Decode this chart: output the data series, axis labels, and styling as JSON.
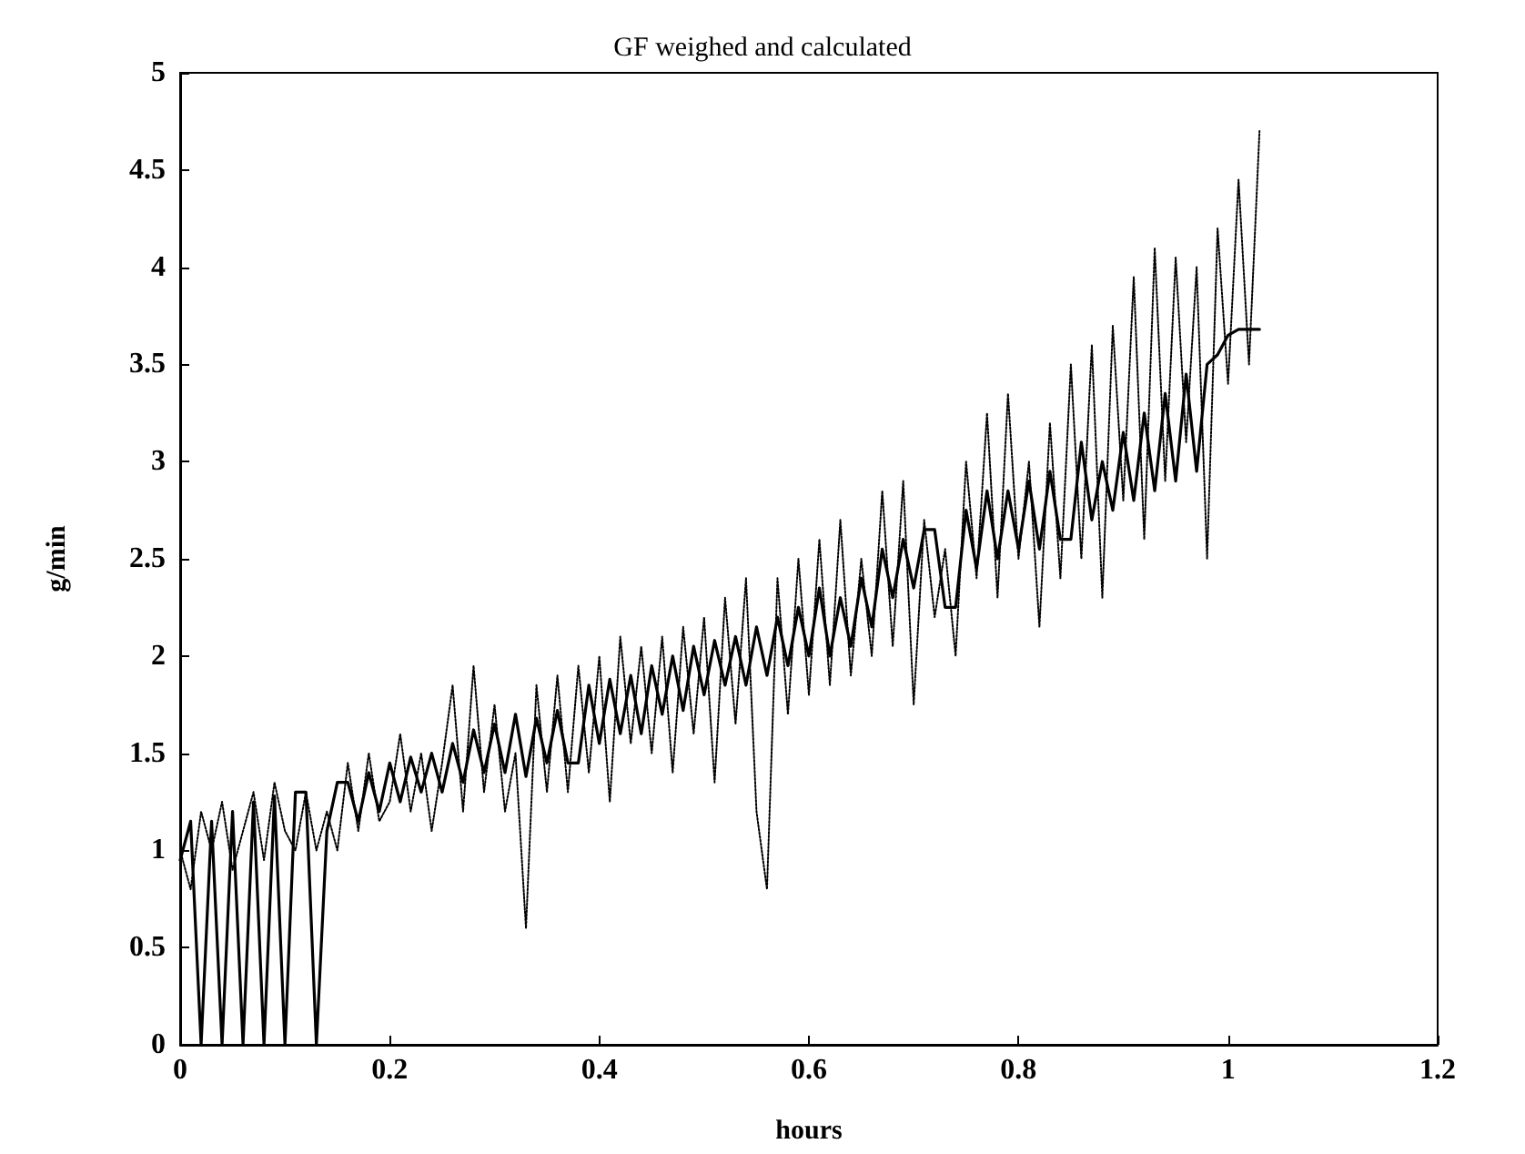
{
  "chart_data": {
    "type": "line",
    "title": "GF weighed and calculated",
    "xlabel": "hours",
    "ylabel": "g/min",
    "x": [
      0,
      0.01,
      0.02,
      0.03,
      0.04,
      0.05,
      0.06,
      0.07,
      0.08,
      0.09,
      0.1,
      0.11,
      0.12,
      0.13,
      0.14,
      0.15,
      0.16,
      0.17,
      0.18,
      0.19,
      0.2,
      0.21,
      0.22,
      0.23,
      0.24,
      0.25,
      0.26,
      0.27,
      0.28,
      0.29,
      0.3,
      0.31,
      0.32,
      0.33,
      0.34,
      0.35,
      0.36,
      0.37,
      0.38,
      0.39,
      0.4,
      0.41,
      0.42,
      0.43,
      0.44,
      0.45,
      0.46,
      0.47,
      0.48,
      0.49,
      0.5,
      0.51,
      0.52,
      0.53,
      0.54,
      0.55,
      0.56,
      0.57,
      0.58,
      0.59,
      0.6,
      0.61,
      0.62,
      0.63,
      0.64,
      0.65,
      0.66,
      0.67,
      0.68,
      0.69,
      0.7,
      0.71,
      0.72,
      0.73,
      0.74,
      0.75,
      0.76,
      0.77,
      0.78,
      0.79,
      0.8,
      0.81,
      0.82,
      0.83,
      0.84,
      0.85,
      0.86,
      0.87,
      0.88,
      0.89,
      0.9,
      0.91,
      0.92,
      0.93,
      0.94,
      0.95,
      0.96,
      0.97,
      0.98,
      0.99,
      1,
      1.01,
      1.02,
      1.03
    ],
    "series": [
      {
        "color": "#000000",
        "line_style": "dotted",
        "values": [
          1.0,
          0.8,
          1.2,
          1.0,
          1.25,
          0.9,
          1.1,
          1.3,
          0.95,
          1.35,
          1.1,
          1.0,
          1.3,
          1.0,
          1.2,
          1.0,
          1.45,
          1.1,
          1.5,
          1.15,
          1.25,
          1.6,
          1.2,
          1.5,
          1.1,
          1.45,
          1.85,
          1.2,
          1.95,
          1.3,
          1.75,
          1.2,
          1.5,
          0.6,
          1.85,
          1.3,
          1.9,
          1.3,
          1.95,
          1.4,
          2.0,
          1.25,
          2.1,
          1.55,
          2.05,
          1.5,
          2.1,
          1.4,
          2.15,
          1.6,
          2.2,
          1.35,
          2.3,
          1.65,
          2.4,
          1.2,
          0.8,
          2.4,
          1.7,
          2.5,
          1.8,
          2.6,
          1.85,
          2.7,
          1.9,
          2.5,
          2.0,
          2.85,
          2.05,
          2.9,
          1.75,
          2.7,
          2.2,
          2.55,
          2.0,
          3.0,
          2.4,
          3.25,
          2.3,
          3.35,
          2.5,
          3.0,
          2.15,
          3.2,
          2.4,
          3.5,
          2.5,
          3.6,
          2.3,
          3.7,
          2.8,
          3.95,
          2.6,
          4.1,
          2.9,
          4.05,
          3.1,
          4.0,
          2.5,
          4.2,
          3.4,
          4.45,
          3.5,
          4.7
        ]
      },
      {
        "color": "#000000",
        "line_style": "solid",
        "values": [
          0.95,
          1.15,
          0,
          1.15,
          0,
          1.2,
          0,
          1.25,
          0,
          1.28,
          0,
          1.3,
          1.3,
          0,
          1.1,
          1.35,
          1.35,
          1.15,
          1.4,
          1.2,
          1.45,
          1.25,
          1.48,
          1.3,
          1.5,
          1.3,
          1.55,
          1.35,
          1.62,
          1.4,
          1.65,
          1.4,
          1.7,
          1.38,
          1.68,
          1.45,
          1.72,
          1.45,
          1.45,
          1.85,
          1.55,
          1.88,
          1.6,
          1.9,
          1.6,
          1.95,
          1.7,
          2.0,
          1.72,
          2.05,
          1.8,
          2.08,
          1.85,
          2.1,
          1.85,
          2.15,
          1.9,
          2.2,
          1.95,
          2.25,
          2.0,
          2.35,
          2.0,
          2.3,
          2.05,
          2.4,
          2.15,
          2.55,
          2.3,
          2.6,
          2.35,
          2.65,
          2.65,
          2.25,
          2.25,
          2.75,
          2.45,
          2.85,
          2.5,
          2.85,
          2.55,
          2.9,
          2.55,
          2.95,
          2.6,
          2.6,
          3.1,
          2.7,
          3.0,
          2.75,
          3.15,
          2.8,
          3.25,
          2.85,
          3.35,
          2.9,
          3.45,
          2.95,
          3.5,
          3.55,
          3.65,
          3.68,
          3.68,
          3.68
        ]
      }
    ],
    "xlim": [
      0,
      1.2
    ],
    "xticks": [
      0,
      0.2,
      0.4,
      0.6,
      0.8,
      1,
      1.2
    ],
    "ylim": [
      0,
      5
    ],
    "yticks": [
      0,
      0.5,
      1,
      1.5,
      2,
      2.5,
      3,
      3.5,
      4,
      4.5,
      5
    ],
    "grid": false,
    "marker": "none"
  }
}
